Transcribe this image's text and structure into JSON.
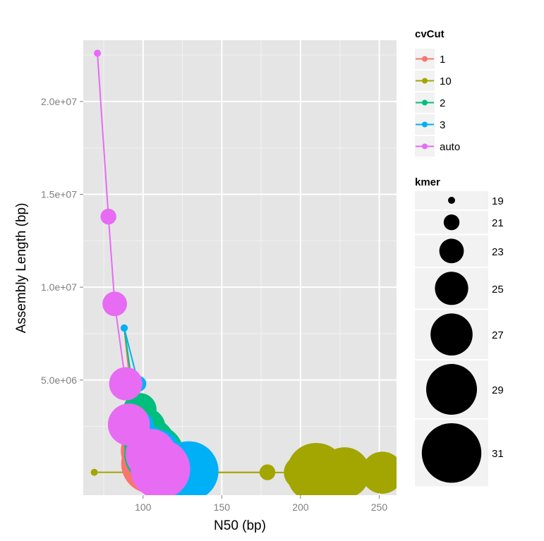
{
  "chart_data": {
    "type": "scatter",
    "xlabel": "N50 (bp)",
    "ylabel": "Assembly Length (bp)",
    "xlim": [
      62,
      261
    ],
    "ylim": [
      -1200000,
      23300000
    ],
    "x_ticks": [
      100,
      150,
      200,
      250
    ],
    "x_tick_labels": [
      "100",
      "150",
      "200",
      "250"
    ],
    "y_ticks": [
      5000000,
      10000000,
      15000000,
      20000000
    ],
    "y_tick_labels": [
      "5.0e+06",
      "1.0e+07",
      "1.5e+07",
      "2.0e+07"
    ],
    "grid": true,
    "legend_placement": "right",
    "color_legend": {
      "title": "cvCut",
      "entries": [
        {
          "label": "1",
          "color": "#F8766D"
        },
        {
          "label": "10",
          "color": "#A3A500"
        },
        {
          "label": "2",
          "color": "#00BF7D"
        },
        {
          "label": "3",
          "color": "#00B0F6"
        },
        {
          "label": "auto",
          "color": "#E76BF3"
        }
      ]
    },
    "size_legend": {
      "title": "kmer",
      "entries": [
        {
          "label": "19",
          "value": 19
        },
        {
          "label": "21",
          "value": 21
        },
        {
          "label": "23",
          "value": 23
        },
        {
          "label": "25",
          "value": 25
        },
        {
          "label": "27",
          "value": 27
        },
        {
          "label": "29",
          "value": 29
        },
        {
          "label": "31",
          "value": 31
        }
      ]
    },
    "series": [
      {
        "name": "1",
        "color": "#F8766D",
        "points": [
          {
            "x": 88,
            "y": 7800000,
            "kmer": 19
          },
          {
            "x": 92,
            "y": 4600000,
            "kmer": 21
          },
          {
            "x": 95,
            "y": 3200000,
            "kmer": 23
          },
          {
            "x": 98,
            "y": 2300000,
            "kmer": 25
          },
          {
            "x": 100,
            "y": 1500000,
            "kmer": 27
          },
          {
            "x": 102,
            "y": 1200000,
            "kmer": 29
          },
          {
            "x": 105,
            "y": 500000,
            "kmer": 31
          }
        ]
      },
      {
        "name": "10",
        "color": "#A3A500",
        "points": [
          {
            "x": 69,
            "y": 30000,
            "kmer": 19
          },
          {
            "x": 179,
            "y": 30000,
            "kmer": 21
          },
          {
            "x": 125,
            "y": 20000,
            "kmer": 23
          },
          {
            "x": 200,
            "y": 20000,
            "kmer": 25
          },
          {
            "x": 252,
            "y": 10000,
            "kmer": 27
          },
          {
            "x": 228,
            "y": 10000,
            "kmer": 29
          },
          {
            "x": 210,
            "y": 10000,
            "kmer": 31
          }
        ]
      },
      {
        "name": "2",
        "color": "#00BF7D",
        "points": [
          {
            "x": 88,
            "y": 7800000,
            "kmer": 19
          },
          {
            "x": 93,
            "y": 4800000,
            "kmer": 21
          },
          {
            "x": 96,
            "y": 3500000,
            "kmer": 23
          },
          {
            "x": 98,
            "y": 3400000,
            "kmer": 25
          },
          {
            "x": 101,
            "y": 2400000,
            "kmer": 27
          },
          {
            "x": 104,
            "y": 1600000,
            "kmer": 29
          },
          {
            "x": 107,
            "y": 1000000,
            "kmer": 31
          }
        ]
      },
      {
        "name": "3",
        "color": "#00B0F6",
        "points": [
          {
            "x": 88,
            "y": 7800000,
            "kmer": 19
          },
          {
            "x": 97,
            "y": 4800000,
            "kmer": 21
          },
          {
            "x": 99,
            "y": 2600000,
            "kmer": 23
          },
          {
            "x": 103,
            "y": 1700000,
            "kmer": 25
          },
          {
            "x": 110,
            "y": 1200000,
            "kmer": 27
          },
          {
            "x": 113,
            "y": 400000,
            "kmer": 29
          },
          {
            "x": 129,
            "y": 100000,
            "kmer": 31
          }
        ]
      },
      {
        "name": "auto",
        "color": "#E76BF3",
        "points": [
          {
            "x": 71,
            "y": 22600000,
            "kmer": 19
          },
          {
            "x": 78,
            "y": 13800000,
            "kmer": 21
          },
          {
            "x": 82,
            "y": 9100000,
            "kmer": 23
          },
          {
            "x": 89,
            "y": 4800000,
            "kmer": 25
          },
          {
            "x": 91,
            "y": 2600000,
            "kmer": 27
          },
          {
            "x": 105,
            "y": 1000000,
            "kmer": 29
          },
          {
            "x": 111,
            "y": 200000,
            "kmer": 31
          }
        ]
      }
    ]
  }
}
